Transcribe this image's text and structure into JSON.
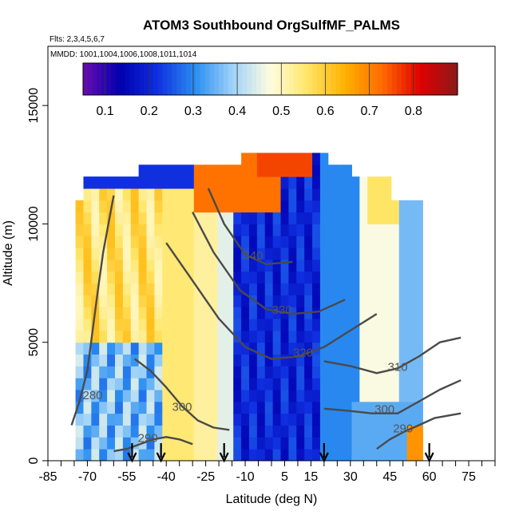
{
  "chart_data": {
    "type": "heatmap",
    "title": "ATOM3 Southbound OrgSulfMF_PALMS",
    "subtitle_flights": "Flts: 2,3,4,5,6,7",
    "subtitle_dates": "MMDD: 1001,1004,1006,1008,1011,1014",
    "xlabel": "Latitude (deg N)",
    "ylabel": "Altitude (m)",
    "xlim": [
      -85,
      85
    ],
    "ylim": [
      0,
      17500
    ],
    "x_ticks": [
      -85,
      -70,
      -55,
      -40,
      -25,
      -10,
      5,
      15,
      30,
      45,
      60,
      75
    ],
    "x_tick_labels": [
      "-85",
      "-70",
      "-55",
      "-40",
      "-25",
      "-10",
      "5",
      "15",
      "30",
      "45",
      "60",
      "75"
    ],
    "x_minor_ticks": [
      -80,
      -75,
      -65,
      -60,
      -50,
      -45,
      -35,
      -30,
      -20,
      -15,
      -5,
      0,
      10,
      20,
      25,
      35,
      40,
      50,
      55,
      65,
      70,
      80,
      85
    ],
    "y_ticks": [
      0,
      5000,
      10000,
      15000
    ],
    "y_tick_labels": [
      "0",
      "5000",
      "10000",
      "15000"
    ],
    "colorbar": {
      "min": 0.05,
      "max": 0.9,
      "ticks": [
        0.1,
        0.2,
        0.3,
        0.4,
        0.5,
        0.6,
        0.7,
        0.8
      ],
      "tick_labels": [
        "0.1",
        "0.2",
        "0.3",
        "0.4",
        "0.5",
        "0.6",
        "0.7",
        "0.8"
      ],
      "colors": [
        "#6a0dad",
        "#0000b0",
        "#1030e0",
        "#2a8ef0",
        "#9fd2f8",
        "#fffde0",
        "#ffe566",
        "#ffb000",
        "#ff6a00",
        "#e00000",
        "#8b1a1a"
      ]
    },
    "heatmap_latitudes": [
      -73,
      -70,
      -67,
      -64,
      -61,
      -58,
      -55,
      -52,
      -49,
      -46,
      -43,
      -40,
      -37,
      -34,
      -31,
      -28,
      -25,
      -22,
      -19,
      -16,
      -13,
      -10,
      -7,
      -4,
      -1,
      2,
      5,
      8,
      11,
      14,
      17,
      20,
      23,
      26,
      29,
      32,
      35,
      38,
      41,
      44,
      47,
      50,
      53,
      56
    ],
    "heatmap_altitudes": [
      250,
      750,
      1250,
      1750,
      2250,
      2750,
      3250,
      3750,
      4250,
      4750,
      5250,
      5750,
      6250,
      6750,
      7250,
      7750,
      8250,
      8750,
      9250,
      9750,
      10250,
      10750,
      11250,
      11750,
      12250,
      12750
    ],
    "isentropes": [
      {
        "label": "280",
        "label_lat": -68,
        "label_alt": 2600,
        "points": [
          [
            -76,
            1500
          ],
          [
            -73,
            2500
          ],
          [
            -70,
            3800
          ],
          [
            -68,
            5500
          ],
          [
            -66,
            7200
          ],
          [
            -64,
            8800
          ],
          [
            -62,
            10000
          ],
          [
            -60,
            11200
          ]
        ]
      },
      {
        "label": "290",
        "label_lat": -47,
        "label_alt": 800,
        "points": [
          [
            -60,
            400
          ],
          [
            -55,
            500
          ],
          [
            -50,
            700
          ],
          [
            -45,
            900
          ],
          [
            -40,
            1000
          ],
          [
            -35,
            900
          ],
          [
            -30,
            700
          ]
        ]
      },
      {
        "label": "300",
        "label_lat": -34,
        "label_alt": 2100,
        "points": [
          [
            -52,
            4300
          ],
          [
            -46,
            3800
          ],
          [
            -40,
            3100
          ],
          [
            -34,
            2300
          ],
          [
            -28,
            1700
          ],
          [
            -22,
            1400
          ],
          [
            -16,
            1300
          ]
        ]
      },
      {
        "label": "320",
        "label_lat": 12,
        "label_alt": 4400,
        "points": [
          [
            -40,
            9200
          ],
          [
            -30,
            7600
          ],
          [
            -20,
            6000
          ],
          [
            -10,
            4800
          ],
          [
            0,
            4300
          ],
          [
            10,
            4400
          ],
          [
            20,
            4800
          ],
          [
            30,
            5500
          ],
          [
            40,
            6200
          ]
        ]
      },
      {
        "label": "330",
        "label_lat": 4,
        "label_alt": 6200,
        "points": [
          [
            -30,
            10500
          ],
          [
            -22,
            8800
          ],
          [
            -12,
            7200
          ],
          [
            -2,
            6400
          ],
          [
            8,
            6200
          ],
          [
            18,
            6300
          ],
          [
            28,
            6800
          ]
        ]
      },
      {
        "label": "340",
        "label_lat": -7,
        "label_alt": 8500,
        "points": [
          [
            -24,
            11500
          ],
          [
            -18,
            10000
          ],
          [
            -10,
            8700
          ],
          [
            -2,
            8300
          ],
          [
            8,
            8400
          ]
        ]
      },
      {
        "label": "310",
        "label_lat": 48,
        "label_alt": 3800,
        "points": [
          [
            20,
            4200
          ],
          [
            30,
            4000
          ],
          [
            40,
            3700
          ],
          [
            48,
            3900
          ],
          [
            56,
            4400
          ],
          [
            64,
            5000
          ],
          [
            72,
            5200
          ]
        ]
      },
      {
        "label": "300",
        "label_lat": 43,
        "label_alt": 2000,
        "points": [
          [
            20,
            2200
          ],
          [
            30,
            2100
          ],
          [
            38,
            2000
          ],
          [
            48,
            2000
          ],
          [
            56,
            2500
          ],
          [
            64,
            3000
          ],
          [
            72,
            3400
          ]
        ]
      },
      {
        "label": "290",
        "label_lat": 50,
        "label_alt": 1200,
        "points": [
          [
            40,
            500
          ],
          [
            45,
            900
          ],
          [
            50,
            1200
          ],
          [
            56,
            1500
          ],
          [
            62,
            1800
          ],
          [
            72,
            2000
          ]
        ]
      }
    ],
    "flight_markers_lat": [
      -53,
      -42,
      -18,
      20,
      60
    ]
  }
}
